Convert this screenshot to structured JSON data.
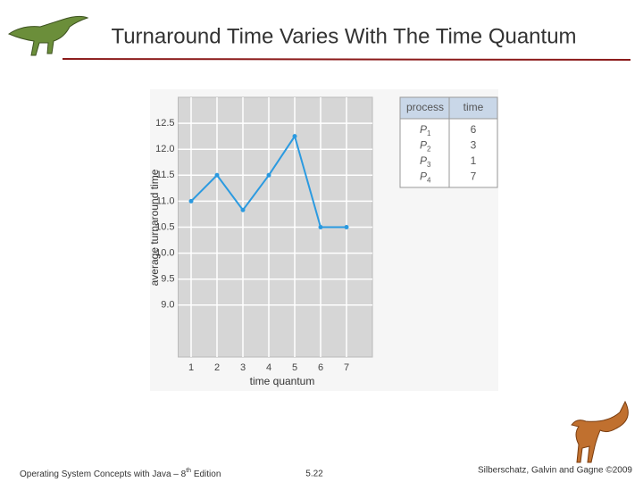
{
  "slide": {
    "title": "Turnaround Time Varies With The Time Quantum",
    "footer": {
      "left": {
        "text": "Operating System Concepts  with Java – 8",
        "sup": "th",
        "tail": " Edition"
      },
      "center": "5.22",
      "right": "Silberschatz, Galvin and Gagne ©2009"
    }
  },
  "chart_data": {
    "type": "line",
    "x_label": "time quantum",
    "y_label": "average turnaround time",
    "x": [
      1,
      2,
      3,
      4,
      5,
      6,
      7
    ],
    "values": [
      11.0,
      11.5,
      10.83,
      11.5,
      12.25,
      10.5,
      10.5
    ],
    "color": "#2b9ae0",
    "xlim": [
      0.5,
      8
    ],
    "xticks": [
      1,
      2,
      3,
      4,
      5,
      6,
      7
    ],
    "ylim": [
      8,
      13
    ],
    "yticks": [
      {
        "value": 9,
        "label": "9.0"
      },
      9.5,
      {
        "value": 10,
        "label": "10.0"
      },
      10.5,
      {
        "value": 11,
        "label": "11.0"
      },
      11.5,
      {
        "value": 12,
        "label": "12.0"
      },
      12.5
    ],
    "grid": true
  },
  "table": {
    "header": [
      "process",
      "time"
    ],
    "rows": [
      {
        "process": "P",
        "index": "1",
        "time": "6"
      },
      {
        "process": "P",
        "index": "2",
        "time": "3"
      },
      {
        "process": "P",
        "index": "3",
        "time": "1"
      },
      {
        "process": "P",
        "index": "4",
        "time": "7"
      }
    ]
  }
}
